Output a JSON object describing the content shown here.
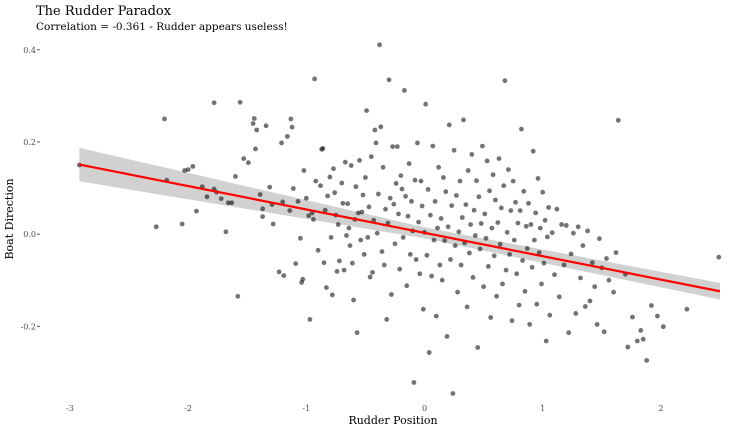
{
  "chart_data": {
    "type": "scatter",
    "title": "The Rudder Paradox",
    "subtitle": "Correlation = -0.361 - Rudder appears useless!",
    "xlabel": "Rudder Position",
    "ylabel": "Boat Direction",
    "xlim": [
      -3.05,
      2.5
    ],
    "ylim": [
      -0.36,
      0.43
    ],
    "x_ticks": [
      -3,
      -2,
      -1,
      0,
      1,
      2
    ],
    "y_ticks": [
      -0.2,
      0.0,
      0.2,
      0.4
    ],
    "x_tick_labels": [
      "-3",
      "-2",
      "-1",
      "0",
      "1",
      "2"
    ],
    "y_tick_labels": [
      "-0.2",
      "0.0",
      "0.2",
      "0.4"
    ],
    "grid": false,
    "point_color": "#000000",
    "point_opacity": 0.55,
    "regression": {
      "color": "#ff0000",
      "band_color": "#cccccc",
      "x": [
        -2.92,
        2.5
      ],
      "y": [
        0.151,
        -0.124
      ],
      "band_halfwidth": [
        0.037,
        0.018
      ]
    },
    "points": [
      [
        -2.92,
        0.15
      ],
      [
        -2.27,
        0.016
      ],
      [
        -2.2,
        0.25
      ],
      [
        -2.18,
        0.117
      ],
      [
        -2.05,
        0.022
      ],
      [
        -2.03,
        0.138
      ],
      [
        -2.0,
        0.14
      ],
      [
        -1.96,
        0.147
      ],
      [
        -1.93,
        0.05
      ],
      [
        -1.88,
        0.103
      ],
      [
        -1.84,
        0.081
      ],
      [
        -1.78,
        0.285
      ],
      [
        -1.78,
        0.098
      ],
      [
        -1.76,
        0.091
      ],
      [
        -1.72,
        0.077
      ],
      [
        -1.68,
        0.005
      ],
      [
        -1.66,
        0.068
      ],
      [
        -1.63,
        0.068
      ],
      [
        -1.6,
        0.125
      ],
      [
        -1.58,
        -0.135
      ],
      [
        -1.56,
        0.286
      ],
      [
        -1.53,
        0.164
      ],
      [
        -1.49,
        0.155
      ],
      [
        -1.45,
        0.24
      ],
      [
        -1.44,
        0.251
      ],
      [
        -1.43,
        0.185
      ],
      [
        -1.42,
        0.226
      ],
      [
        -1.39,
        0.086
      ],
      [
        -1.37,
        0.055
      ],
      [
        -1.37,
        0.038
      ],
      [
        -1.34,
        0.235
      ],
      [
        -1.31,
        0.102
      ],
      [
        -1.29,
        0.064
      ],
      [
        -1.28,
        0.022
      ],
      [
        -1.23,
        -0.082
      ],
      [
        -1.21,
        0.198
      ],
      [
        -1.2,
        0.07
      ],
      [
        -1.19,
        -0.09
      ],
      [
        -1.16,
        0.212
      ],
      [
        -1.14,
        0.051
      ],
      [
        -1.13,
        0.25
      ],
      [
        -1.12,
        0.232
      ],
      [
        -1.11,
        0.099
      ],
      [
        -1.09,
        -0.064
      ],
      [
        -1.07,
        0.071
      ],
      [
        -1.05,
        -0.009
      ],
      [
        -1.04,
        -0.105
      ],
      [
        -1.03,
        -0.098
      ],
      [
        -1.02,
        0.138
      ],
      [
        -1.0,
        0.078
      ],
      [
        -0.98,
        0.04
      ],
      [
        -0.97,
        -0.185
      ],
      [
        -0.95,
        0.046
      ],
      [
        -0.94,
        0.032
      ],
      [
        -0.93,
        0.337
      ],
      [
        -0.92,
        0.115
      ],
      [
        -0.9,
        -0.035
      ],
      [
        -0.88,
        0.105
      ],
      [
        -0.87,
        0.184
      ],
      [
        -0.86,
        0.186
      ],
      [
        -0.85,
        -0.062
      ],
      [
        -0.84,
        0.052
      ],
      [
        -0.83,
        -0.116
      ],
      [
        -0.82,
        0.083
      ],
      [
        -0.8,
        0.124
      ],
      [
        -0.79,
        -0.007
      ],
      [
        -0.78,
        -0.132
      ],
      [
        -0.77,
        0.142
      ],
      [
        -0.76,
        0.09
      ],
      [
        -0.75,
        0.041
      ],
      [
        -0.74,
        -0.081
      ],
      [
        -0.73,
        0.021
      ],
      [
        -0.72,
        -0.058
      ],
      [
        -0.7,
        0.111
      ],
      [
        -0.69,
        0.067
      ],
      [
        -0.68,
        -0.078
      ],
      [
        -0.67,
        0.156
      ],
      [
        -0.66,
        -0.003
      ],
      [
        -0.65,
        0.066
      ],
      [
        -0.64,
        0.013
      ],
      [
        -0.63,
        -0.025
      ],
      [
        -0.62,
        0.149
      ],
      [
        -0.61,
        -0.063
      ],
      [
        -0.6,
        -0.143
      ],
      [
        -0.59,
        0.032
      ],
      [
        -0.58,
        0.103
      ],
      [
        -0.57,
        -0.214
      ],
      [
        -0.56,
        0.046
      ],
      [
        -0.55,
        0.16
      ],
      [
        -0.54,
        -0.013
      ],
      [
        -0.53,
        0.048
      ],
      [
        -0.52,
        0.085
      ],
      [
        -0.51,
        -0.044
      ],
      [
        -0.5,
        0.123
      ],
      [
        -0.49,
        0.268
      ],
      [
        -0.48,
        -0.007
      ],
      [
        -0.47,
        0.059
      ],
      [
        -0.46,
        -0.093
      ],
      [
        -0.45,
        0.168
      ],
      [
        -0.44,
        -0.083
      ],
      [
        -0.43,
        0.03
      ],
      [
        -0.42,
        0.226
      ],
      [
        -0.41,
        0.198
      ],
      [
        -0.4,
        0.002
      ],
      [
        -0.39,
        0.087
      ],
      [
        -0.38,
        0.411
      ],
      [
        -0.37,
        0.233
      ],
      [
        -0.36,
        -0.038
      ],
      [
        -0.35,
        0.145
      ],
      [
        -0.34,
        -0.067
      ],
      [
        -0.33,
        0.054
      ],
      [
        -0.32,
        -0.185
      ],
      [
        -0.31,
        0.024
      ],
      [
        -0.3,
        0.335
      ],
      [
        -0.29,
        0.078
      ],
      [
        -0.28,
        -0.131
      ],
      [
        -0.27,
        0.19
      ],
      [
        -0.26,
        0.065
      ],
      [
        -0.25,
        -0.021
      ],
      [
        -0.24,
        0.11
      ],
      [
        -0.23,
        0.19
      ],
      [
        -0.22,
        0.044
      ],
      [
        -0.21,
        -0.076
      ],
      [
        -0.2,
        0.127
      ],
      [
        -0.19,
        0.098
      ],
      [
        -0.18,
        -0.007
      ],
      [
        -0.17,
        0.312
      ],
      [
        -0.16,
        0.082
      ],
      [
        -0.15,
        -0.112
      ],
      [
        -0.14,
        0.039
      ],
      [
        -0.13,
        0.153
      ],
      [
        -0.12,
        -0.044
      ],
      [
        -0.11,
        0.071
      ],
      [
        -0.1,
        0.007
      ],
      [
        -0.09,
        -0.322
      ],
      [
        -0.08,
        0.117
      ],
      [
        -0.07,
        -0.055
      ],
      [
        -0.06,
        0.198
      ],
      [
        -0.05,
        0.026
      ],
      [
        -0.04,
        -0.086
      ],
      [
        -0.03,
        0.115
      ],
      [
        -0.02,
        0.061
      ],
      [
        -0.01,
        -0.163
      ],
      [
        0.0,
        0.004
      ],
      [
        0.01,
        0.282
      ],
      [
        0.02,
        -0.046
      ],
      [
        0.03,
        0.097
      ],
      [
        0.04,
        -0.257
      ],
      [
        0.05,
        0.041
      ],
      [
        0.06,
        -0.091
      ],
      [
        0.07,
        0.191
      ],
      [
        0.08,
        -0.013
      ],
      [
        0.09,
        0.071
      ],
      [
        0.1,
        -0.178
      ],
      [
        0.11,
        0.013
      ],
      [
        0.12,
        0.145
      ],
      [
        0.13,
        -0.067
      ],
      [
        0.14,
        0.034
      ],
      [
        0.15,
        -0.1
      ],
      [
        0.16,
        0.123
      ],
      [
        0.17,
        -0.014
      ],
      [
        0.18,
        0.092
      ],
      [
        0.19,
        -0.222
      ],
      [
        0.2,
        0.016
      ],
      [
        0.21,
        0.237
      ],
      [
        0.22,
        -0.055
      ],
      [
        0.23,
        0.062
      ],
      [
        0.24,
        -0.346
      ],
      [
        0.25,
        0.182
      ],
      [
        0.26,
        -0.025
      ],
      [
        0.27,
        0.084
      ],
      [
        0.28,
        -0.126
      ],
      [
        0.29,
        0.005
      ],
      [
        0.3,
        0.115
      ],
      [
        0.31,
        -0.067
      ],
      [
        0.32,
        0.036
      ],
      [
        0.33,
        0.248
      ],
      [
        0.34,
        -0.019
      ],
      [
        0.35,
        0.064
      ],
      [
        0.36,
        -0.158
      ],
      [
        0.37,
        0.138
      ],
      [
        0.38,
        -0.041
      ],
      [
        0.39,
        0.021
      ],
      [
        0.4,
        0.173
      ],
      [
        0.41,
        -0.094
      ],
      [
        0.42,
        0.052
      ],
      [
        0.43,
        -0.003
      ],
      [
        0.44,
        0.116
      ],
      [
        0.45,
        -0.246
      ],
      [
        0.46,
        0.081
      ],
      [
        0.47,
        -0.032
      ],
      [
        0.48,
        0.023
      ],
      [
        0.49,
        0.191
      ],
      [
        0.5,
        -0.114
      ],
      [
        0.51,
        0.044
      ],
      [
        0.52,
        -0.009
      ],
      [
        0.53,
        0.159
      ],
      [
        0.54,
        -0.07
      ],
      [
        0.55,
        0.094
      ],
      [
        0.56,
        -0.181
      ],
      [
        0.57,
        0.013
      ],
      [
        0.58,
        0.129
      ],
      [
        0.59,
        -0.047
      ],
      [
        0.6,
        0.074
      ],
      [
        0.61,
        -0.135
      ],
      [
        0.62,
        0.025
      ],
      [
        0.63,
        0.164
      ],
      [
        0.64,
        -0.022
      ],
      [
        0.65,
        0.057
      ],
      [
        0.66,
        -0.108
      ],
      [
        0.67,
        0.105
      ],
      [
        0.68,
        0.333
      ],
      [
        0.69,
        -0.078
      ],
      [
        0.7,
        0.004
      ],
      [
        0.71,
        0.14
      ],
      [
        0.72,
        -0.044
      ],
      [
        0.73,
        0.051
      ],
      [
        0.74,
        -0.188
      ],
      [
        0.75,
        0.115
      ],
      [
        0.76,
        -0.013
      ],
      [
        0.77,
        0.069
      ],
      [
        0.78,
        -0.086
      ],
      [
        0.79,
        0.024
      ],
      [
        0.8,
        -0.154
      ],
      [
        0.81,
        0.051
      ],
      [
        0.82,
        0.228
      ],
      [
        0.83,
        -0.057
      ],
      [
        0.84,
        0.093
      ],
      [
        0.85,
        -0.124
      ],
      [
        0.86,
        0.017
      ],
      [
        0.87,
        -0.031
      ],
      [
        0.88,
        0.067
      ],
      [
        0.89,
        -0.196
      ],
      [
        0.9,
        0.021
      ],
      [
        0.91,
        -0.072
      ],
      [
        0.92,
        0.18
      ],
      [
        0.93,
        -0.013
      ],
      [
        0.94,
        0.046
      ],
      [
        0.95,
        -0.152
      ],
      [
        0.96,
        0.121
      ],
      [
        0.97,
        -0.04
      ],
      [
        0.98,
        0.013
      ],
      [
        0.99,
        -0.108
      ],
      [
        1.0,
        0.091
      ],
      [
        1.01,
        -0.063
      ],
      [
        1.02,
        0.03
      ],
      [
        1.03,
        -0.232
      ],
      [
        1.04,
        -0.006
      ],
      [
        1.05,
        0.058
      ],
      [
        1.06,
        -0.176
      ],
      [
        1.08,
        0.003
      ],
      [
        1.1,
        -0.088
      ],
      [
        1.12,
        0.054
      ],
      [
        1.14,
        -0.136
      ],
      [
        1.16,
        0.021
      ],
      [
        1.18,
        -0.067
      ],
      [
        1.2,
        0.019
      ],
      [
        1.22,
        -0.214
      ],
      [
        1.24,
        -0.043
      ],
      [
        1.26,
        0.002
      ],
      [
        1.28,
        -0.172
      ],
      [
        1.3,
        0.016
      ],
      [
        1.32,
        -0.095
      ],
      [
        1.34,
        -0.025
      ],
      [
        1.36,
        -0.157
      ],
      [
        1.38,
        0.007
      ],
      [
        1.4,
        -0.145
      ],
      [
        1.42,
        -0.062
      ],
      [
        1.44,
        -0.114
      ],
      [
        1.46,
        -0.196
      ],
      [
        1.48,
        -0.01
      ],
      [
        1.5,
        -0.073
      ],
      [
        1.52,
        -0.212
      ],
      [
        1.54,
        -0.053
      ],
      [
        1.56,
        -0.1
      ],
      [
        1.6,
        -0.126
      ],
      [
        1.62,
        -0.04
      ],
      [
        1.64,
        0.247
      ],
      [
        1.7,
        -0.087
      ],
      [
        1.72,
        -0.245
      ],
      [
        1.76,
        -0.18
      ],
      [
        1.8,
        -0.232
      ],
      [
        1.83,
        -0.209
      ],
      [
        1.85,
        -0.228
      ],
      [
        1.88,
        -0.274
      ],
      [
        1.92,
        -0.155
      ],
      [
        1.97,
        -0.178
      ],
      [
        2.02,
        -0.201
      ],
      [
        2.22,
        -0.163
      ],
      [
        2.49,
        -0.05
      ]
    ]
  }
}
